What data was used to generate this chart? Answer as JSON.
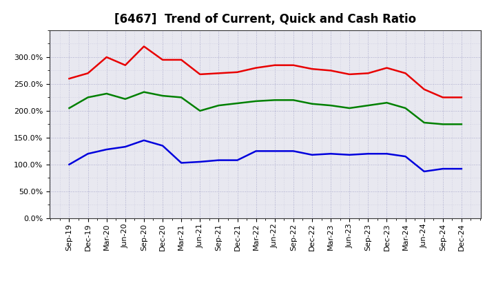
{
  "title": "[6467]  Trend of Current, Quick and Cash Ratio",
  "x_labels": [
    "Sep-19",
    "Dec-19",
    "Mar-20",
    "Jun-20",
    "Sep-20",
    "Dec-20",
    "Mar-21",
    "Jun-21",
    "Sep-21",
    "Dec-21",
    "Mar-22",
    "Jun-22",
    "Sep-22",
    "Dec-22",
    "Mar-23",
    "Jun-23",
    "Sep-23",
    "Dec-23",
    "Mar-24",
    "Jun-24",
    "Sep-24",
    "Dec-24"
  ],
  "current_ratio": [
    260,
    270,
    300,
    285,
    320,
    295,
    295,
    268,
    270,
    272,
    280,
    285,
    285,
    278,
    275,
    268,
    270,
    280,
    270,
    240,
    225,
    225
  ],
  "quick_ratio": [
    205,
    225,
    232,
    222,
    235,
    228,
    225,
    200,
    210,
    214,
    218,
    220,
    220,
    213,
    210,
    205,
    210,
    215,
    205,
    178,
    175,
    175
  ],
  "cash_ratio": [
    100,
    120,
    128,
    133,
    145,
    135,
    103,
    105,
    108,
    108,
    125,
    125,
    125,
    118,
    120,
    118,
    120,
    120,
    115,
    87,
    92,
    92
  ],
  "current_color": "#e80000",
  "quick_color": "#008000",
  "cash_color": "#0000dd",
  "ylim": [
    0,
    350
  ],
  "yticks": [
    0,
    50,
    100,
    150,
    200,
    250,
    300
  ],
  "background_color": "#ffffff",
  "plot_bg_color": "#e8e8f0",
  "grid_color": "#aaaacc",
  "title_fontsize": 12,
  "axis_fontsize": 8,
  "legend_fontsize": 9,
  "line_width": 1.8
}
